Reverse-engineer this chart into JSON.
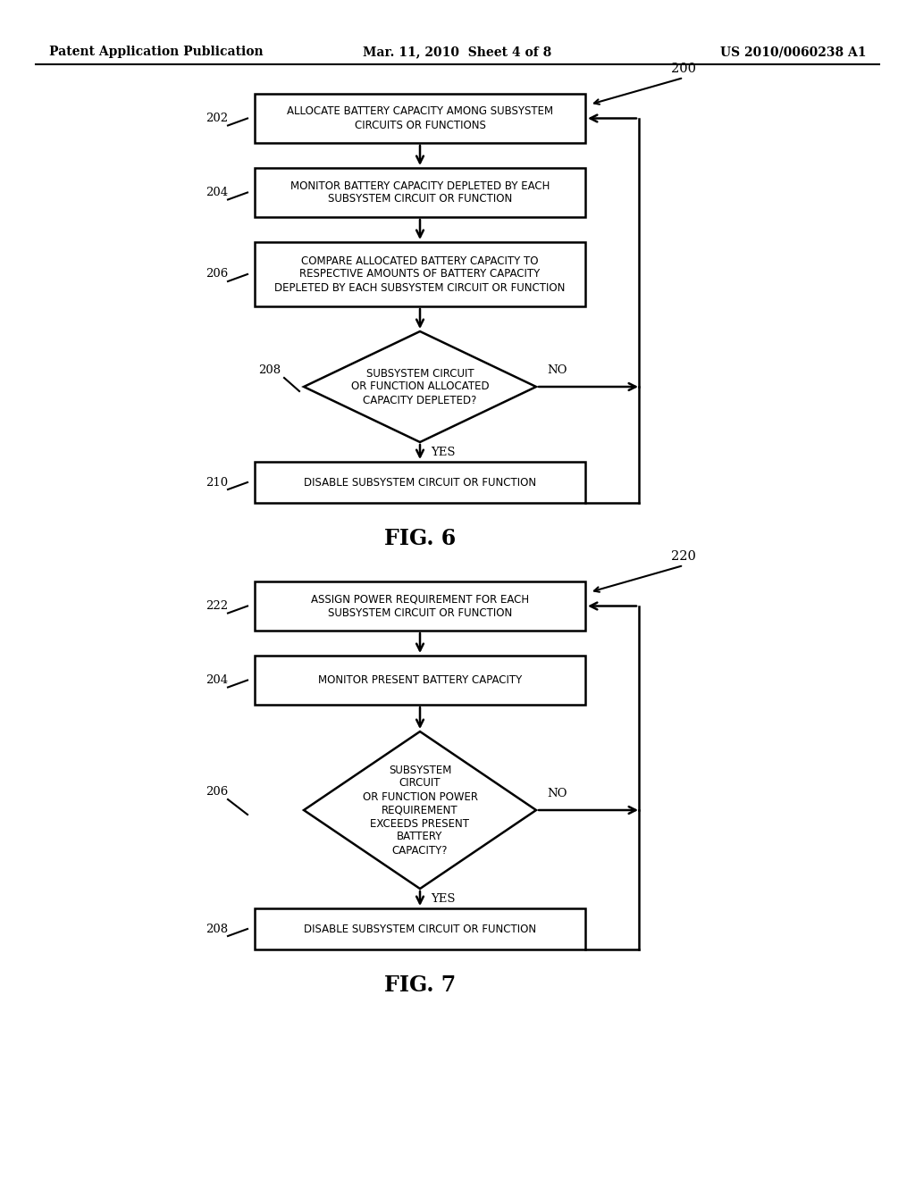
{
  "bg_color": "#ffffff",
  "header_left": "Patent Application Publication",
  "header_mid": "Mar. 11, 2010  Sheet 4 of 8",
  "header_right": "US 2010/0060238 A1",
  "fig6_title": "FIG. 6",
  "fig7_title": "FIG. 7",
  "fig6_label": "200",
  "fig7_label": "220",
  "fig6": {
    "box202_text": "ALLOCATE BATTERY CAPACITY AMONG SUBSYSTEM\nCIRCUITS OR FUNCTIONS",
    "box204_text": "MONITOR BATTERY CAPACITY DEPLETED BY EACH\nSUBSYSTEM CIRCUIT OR FUNCTION",
    "box206_text": "COMPARE ALLOCATED BATTERY CAPACITY TO\nRESPECTIVE AMOUNTS OF BATTERY CAPACITY\nDEPLETED BY EACH SUBSYSTEM CIRCUIT OR FUNCTION",
    "diamond208_text": "SUBSYSTEM CIRCUIT\nOR FUNCTION ALLOCATED\nCAPACITY DEPLETED?",
    "box210_text": "DISABLE SUBSYSTEM CIRCUIT OR FUNCTION",
    "label202": "202",
    "label204": "204",
    "label206": "206",
    "label208": "208",
    "label210": "210",
    "no_label": "NO",
    "yes_label": "YES"
  },
  "fig7": {
    "box222_text": "ASSIGN POWER REQUIREMENT FOR EACH\nSUBSYSTEM CIRCUIT OR FUNCTION",
    "box204_text": "MONITOR PRESENT BATTERY CAPACITY",
    "diamond206_text": "SUBSYSTEM\nCIRCUIT\nOR FUNCTION POWER\nREQUIREMENT\nEXCEEDS PRESENT\nBATTERY\nCAPACITY?",
    "box208_text": "DISABLE SUBSYSTEM CIRCUIT OR FUNCTION",
    "label222": "222",
    "label204": "204",
    "label206": "206",
    "label208": "208",
    "no_label": "NO",
    "yes_label": "YES"
  }
}
